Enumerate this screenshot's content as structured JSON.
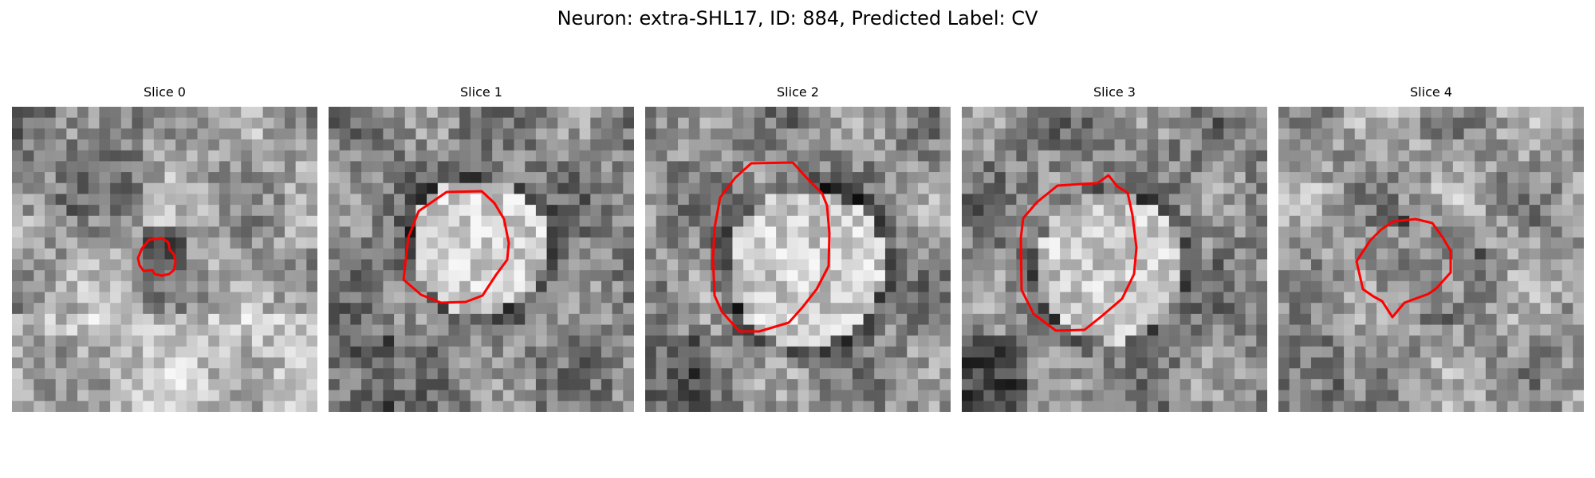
{
  "figure": {
    "title": "Neuron: extra-SHL17, ID: 884, Predicted Label: CV",
    "contour_color": "#ff0000"
  },
  "panels": [
    {
      "title": "Slice 0",
      "image": "grayscale-microscopy-tile",
      "contour": "red-segmentation-outline"
    },
    {
      "title": "Slice 1",
      "image": "grayscale-microscopy-tile",
      "contour": "red-segmentation-outline"
    },
    {
      "title": "Slice 2",
      "image": "grayscale-microscopy-tile",
      "contour": "red-segmentation-outline"
    },
    {
      "title": "Slice 3",
      "image": "grayscale-microscopy-tile",
      "contour": "red-segmentation-outline"
    },
    {
      "title": "Slice 4",
      "image": "grayscale-microscopy-tile",
      "contour": "red-segmentation-outline"
    }
  ]
}
